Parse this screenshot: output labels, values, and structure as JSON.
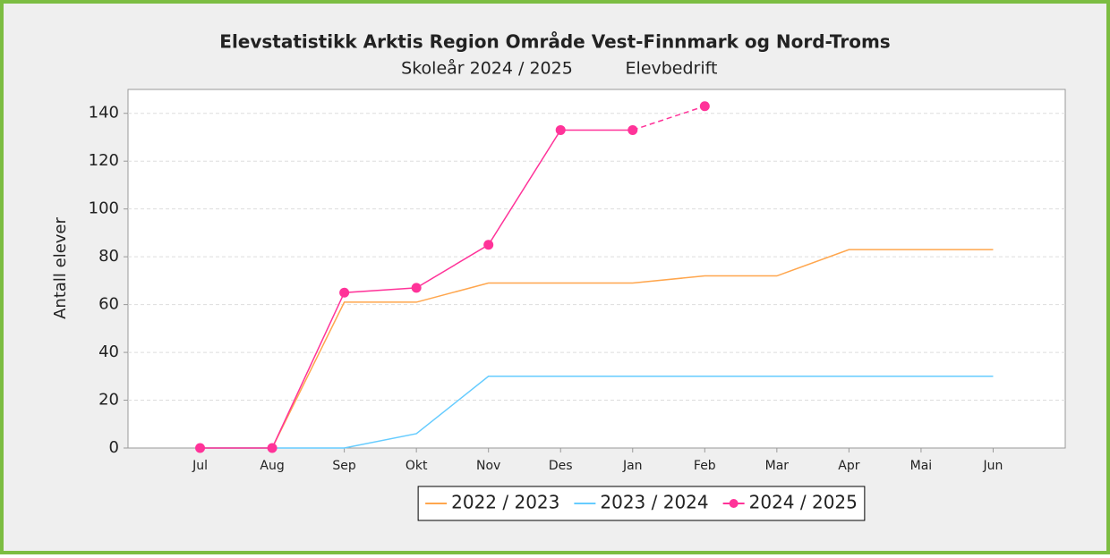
{
  "chart_data": {
    "type": "line",
    "title": "Elevstatistikk Arktis Region Område Vest-Finnmark og Nord-Troms",
    "subtitle": [
      "Skoleår 2024 / 2025",
      "Elevbedrift"
    ],
    "y_label": "Antall elever",
    "categories": [
      "Jul",
      "Aug",
      "Sep",
      "Okt",
      "Nov",
      "Des",
      "Jan",
      "Feb",
      "Mar",
      "Apr",
      "Mai",
      "Jun"
    ],
    "series": [
      {
        "name": "2022 / 2023",
        "color": "#ffa64d",
        "markers": false,
        "values": [
          0,
          0,
          61,
          61,
          69,
          69,
          69,
          72,
          72,
          83,
          83,
          83
        ]
      },
      {
        "name": "2023 / 2024",
        "color": "#66ccff",
        "markers": false,
        "values": [
          0,
          0,
          0,
          6,
          30,
          30,
          30,
          30,
          30,
          30,
          30,
          30
        ]
      },
      {
        "name": "2024 / 2025",
        "color": "#ff3399",
        "markers": true,
        "dashed_last_segment": true,
        "values": [
          0,
          0,
          65,
          67,
          85,
          133,
          133,
          143,
          null,
          null,
          null,
          null
        ]
      }
    ],
    "ylim": [
      0,
      150
    ],
    "yticks": [
      0,
      20,
      40,
      60,
      80,
      100,
      120,
      140
    ],
    "grid": true,
    "legend": "bottom"
  }
}
